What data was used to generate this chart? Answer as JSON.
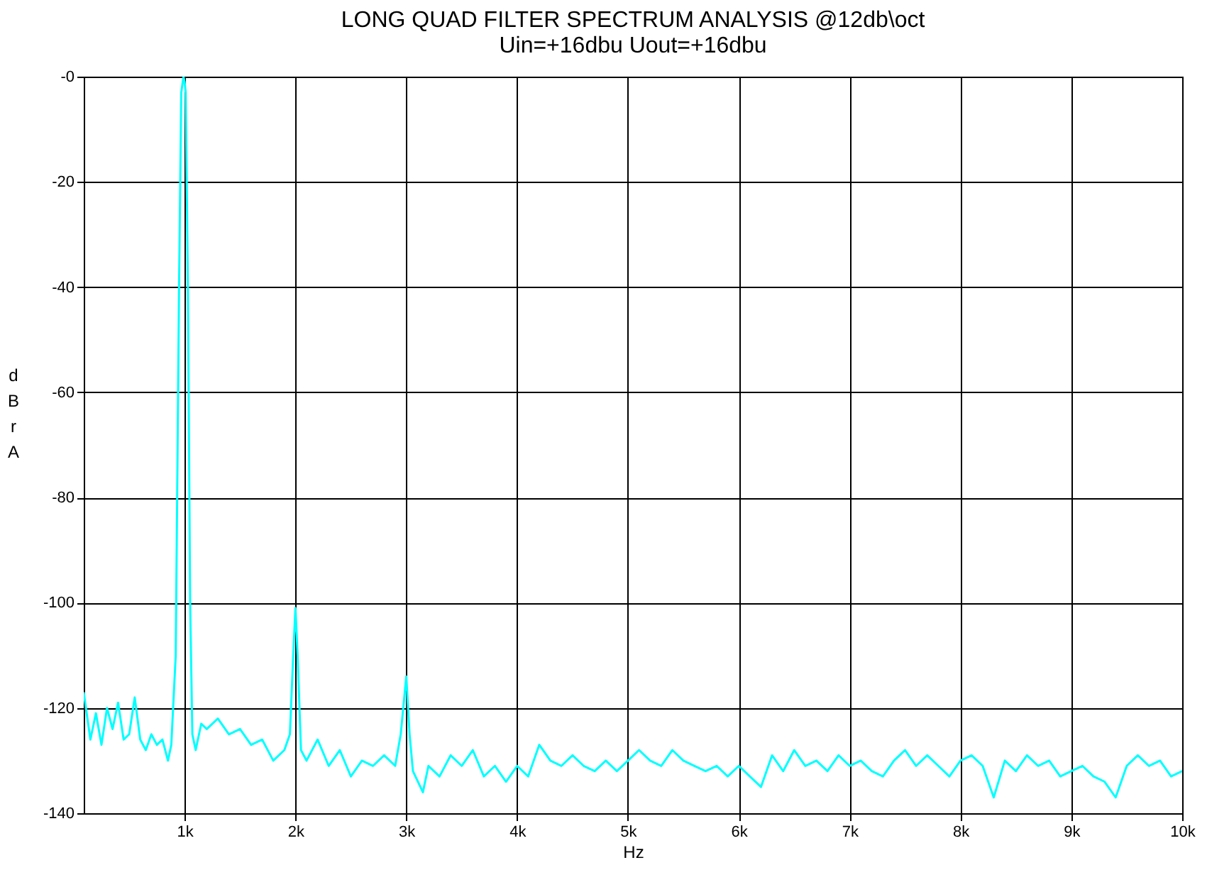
{
  "chart_data": {
    "type": "line",
    "title": "LONG QUAD FILTER SPECTRUM ANALYSIS @12db\\oct",
    "subtitle": "Uin=+16dbu Uout=+16dbu",
    "xlabel": "Hz",
    "ylabel": "dBr A",
    "xlim": [
      90,
      10000
    ],
    "xticks": [
      {
        "value": 1000,
        "label": "1k"
      },
      {
        "value": 2000,
        "label": "2k"
      },
      {
        "value": 3000,
        "label": "3k"
      },
      {
        "value": 4000,
        "label": "4k"
      },
      {
        "value": 5000,
        "label": "5k"
      },
      {
        "value": 6000,
        "label": "6k"
      },
      {
        "value": 7000,
        "label": "7k"
      },
      {
        "value": 8000,
        "label": "8k"
      },
      {
        "value": 9000,
        "label": "9k"
      },
      {
        "value": 10000,
        "label": "10k"
      }
    ],
    "ylim": [
      -140,
      0
    ],
    "yticks": [
      {
        "value": 0,
        "label": "-0"
      },
      -20,
      -40,
      -60,
      -80,
      -100,
      -120,
      -140
    ],
    "grid": true,
    "marker": "none",
    "line_style": "solid",
    "series": [
      {
        "color": "#00ffff",
        "x": [
          90,
          150,
          200,
          250,
          300,
          350,
          400,
          450,
          500,
          550,
          600,
          650,
          700,
          750,
          800,
          850,
          880,
          920,
          950,
          970,
          990,
          1000,
          1010,
          1030,
          1050,
          1070,
          1100,
          1150,
          1200,
          1300,
          1400,
          1500,
          1600,
          1700,
          1800,
          1900,
          1950,
          1980,
          2000,
          2020,
          2050,
          2100,
          2200,
          2300,
          2400,
          2500,
          2600,
          2700,
          2800,
          2900,
          2950,
          3000,
          3030,
          3060,
          3150,
          3200,
          3300,
          3400,
          3500,
          3600,
          3700,
          3800,
          3900,
          4000,
          4100,
          4200,
          4300,
          4400,
          4500,
          4600,
          4700,
          4800,
          4900,
          5000,
          5100,
          5200,
          5300,
          5400,
          5500,
          5600,
          5700,
          5800,
          5900,
          6000,
          6100,
          6200,
          6300,
          6400,
          6500,
          6600,
          6700,
          6800,
          6900,
          7000,
          7100,
          7200,
          7300,
          7400,
          7500,
          7600,
          7700,
          7800,
          7900,
          8000,
          8100,
          8200,
          8300,
          8400,
          8500,
          8600,
          8700,
          8800,
          8900,
          9000,
          9100,
          9200,
          9300,
          9400,
          9500,
          9600,
          9700,
          9800,
          9900,
          10000
        ],
        "values": [
          -117,
          -126,
          -121,
          -127,
          -120,
          -124,
          -119,
          -126,
          -125,
          -118,
          -126,
          -128,
          -125,
          -127,
          -126,
          -130,
          -127,
          -110,
          -40,
          -3,
          0,
          -1,
          -3,
          -40,
          -100,
          -125,
          -128,
          -123,
          -124,
          -122,
          -125,
          -124,
          -127,
          -126,
          -130,
          -128,
          -125,
          -110,
          -101,
          -110,
          -128,
          -130,
          -126,
          -131,
          -128,
          -133,
          -130,
          -131,
          -129,
          -131,
          -125,
          -114,
          -125,
          -132,
          -136,
          -131,
          -133,
          -129,
          -131,
          -128,
          -133,
          -131,
          -134,
          -131,
          -133,
          -127,
          -130,
          -131,
          -129,
          -131,
          -132,
          -130,
          -132,
          -130,
          -128,
          -130,
          -131,
          -128,
          -130,
          -131,
          -132,
          -131,
          -133,
          -131,
          -133,
          -135,
          -129,
          -132,
          -128,
          -131,
          -130,
          -132,
          -129,
          -131,
          -130,
          -132,
          -133,
          -130,
          -128,
          -131,
          -129,
          -131,
          -133,
          -130,
          -129,
          -131,
          -137,
          -130,
          -132,
          -129,
          -131,
          -130,
          -133,
          -132,
          -131,
          -133,
          -134,
          -137,
          -131,
          -129,
          -131,
          -130,
          -133,
          -132
        ]
      }
    ]
  }
}
